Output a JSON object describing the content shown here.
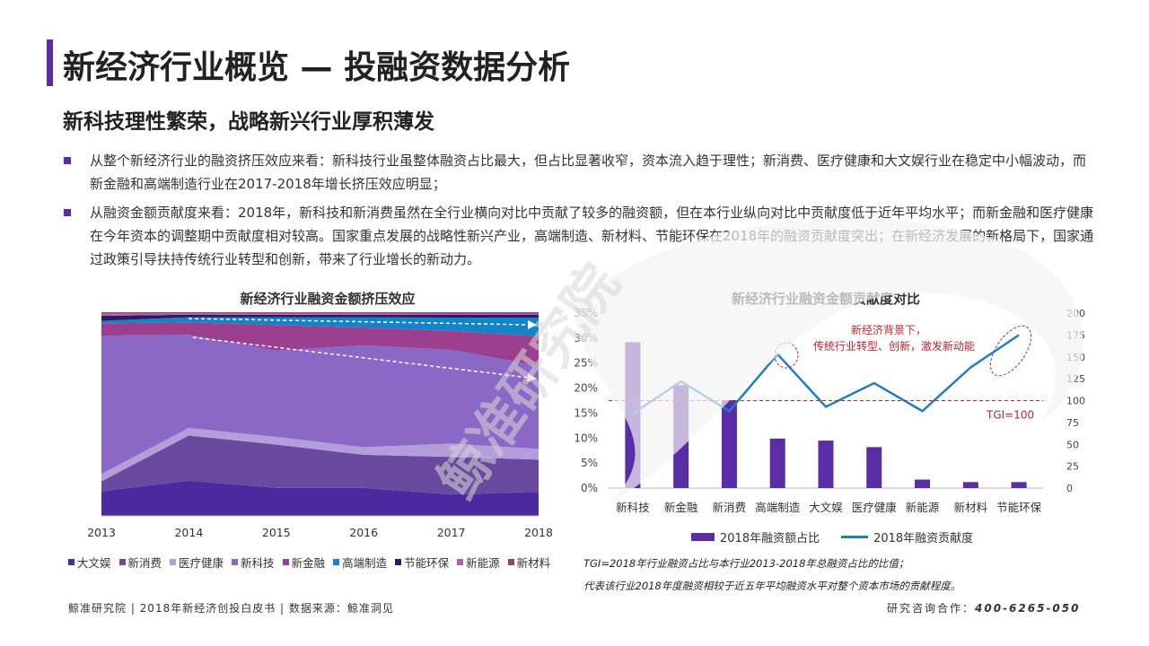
{
  "header": {
    "title": "新经济行业概览 — 投融资数据分析",
    "subtitle": "新科技理性繁荣，战略新兴行业厚积薄发"
  },
  "bullets": [
    "从整个新经济行业的融资挤压效应来看：新科技行业虽整体融资占比最大，但占比显著收窄，资本流入趋于理性；新消费、医疗健康和大文娱行业在稳定中小幅波动，而新金融和高端制造行业在2017-2018年增长挤压效应明显；",
    "从融资金额贡献度来看：2018年，新科技和新消费虽然在全行业横向对比中贡献了较多的融资额，但在本行业纵向对比中贡献度低于近年平均水平；而新金融和医疗健康在今年资本的调整期中贡献度相对较高。国家重点发展的战略性新兴产业，高端制造、新材料、节能环保在2018年的融资贡献度突出；在新经济发展的新格局下，国家通过政策引导扶持传统行业转型和创新，带来了行业增长的新动力。"
  ],
  "watermark": "鲸准研究院",
  "colors": {
    "accent": "#5a2ca6",
    "line": "#1f7fc2",
    "tgi": "#c0262d"
  },
  "chart_data": [
    {
      "type": "area",
      "stacked": true,
      "normalized": true,
      "title": "新经济行业融资金额挤压效应",
      "x": [
        2013,
        2014,
        2015,
        2016,
        2017,
        2018
      ],
      "series": [
        {
          "name": "大文娱",
          "color": "#4b2aa0",
          "values": [
            10,
            14,
            11,
            11,
            8,
            9
          ]
        },
        {
          "name": "新消费",
          "color": "#6a4a9e",
          "values": [
            4,
            18,
            17,
            13,
            14,
            12
          ]
        },
        {
          "name": "医疗健康",
          "color": "#b39ddb",
          "values": [
            3,
            3,
            3,
            3,
            5,
            4
          ]
        },
        {
          "name": "新科技",
          "color": "#8b68c6",
          "values": [
            56,
            37,
            34,
            40,
            35,
            31
          ]
        },
        {
          "name": "新金融",
          "color": "#9c3f8e",
          "values": [
            5,
            5,
            10,
            7,
            7,
            11
          ]
        },
        {
          "name": "高端制造",
          "color": "#1384c8",
          "values": [
            1,
            2,
            3,
            4,
            5,
            7
          ]
        },
        {
          "name": "节能环保",
          "color": "#2a1a5e",
          "values": [
            2,
            1,
            1,
            1,
            1,
            1
          ]
        },
        {
          "name": "新能源",
          "color": "#c05aa8",
          "values": [
            1,
            0.5,
            0.5,
            0.5,
            0.5,
            0.5
          ]
        },
        {
          "name": "新材料",
          "color": "#7b4a7a",
          "values": [
            0.5,
            0.5,
            0.5,
            0.5,
            0.5,
            0.5
          ]
        }
      ],
      "legend_position": "bottom"
    },
    {
      "type": "bar",
      "title": "新经济行业融资金额贡献度对比",
      "categories": [
        "新科技",
        "新金融",
        "新消费",
        "高端制造",
        "大文娱",
        "医疗健康",
        "新能源",
        "新材料",
        "节能环保"
      ],
      "series": [
        {
          "name": "2018年融资额占比",
          "type": "bar",
          "axis": "left",
          "values": [
            29.2,
            20.6,
            17.6,
            9.9,
            9.5,
            8.2,
            1.7,
            1.2,
            1.2
          ]
        },
        {
          "name": "2018年融资贡献度",
          "type": "line",
          "axis": "right",
          "values": [
            85,
            122,
            88,
            153,
            93,
            120,
            88,
            138,
            175
          ]
        }
      ],
      "y_left": {
        "min": 0,
        "max": 35,
        "ticks": [
          "0%",
          "5%",
          "10%",
          "15%",
          "20%",
          "25%",
          "30%",
          "35%"
        ]
      },
      "y_right": {
        "min": 0,
        "max": 200,
        "ticks": [
          "0",
          "25",
          "50",
          "75",
          "100",
          "125",
          "150",
          "175",
          "200"
        ]
      },
      "reference_line": {
        "label": "TGI=100",
        "value": 100,
        "axis": "right"
      },
      "annotation": "新经济背景下，\n传统行业转型、创新，激发新动能",
      "legend_position": "bottom"
    }
  ],
  "notes": [
    "TGI=2018年行业融资占比与本行业2013-2018年总融资占比的比值；",
    "代表该行业2018年度融资相较于近五年平均融资水平对整个资本市场的贡献程度。"
  ],
  "footer": {
    "left": "鲸准研究院 | 2018年新经济创投白皮书 | 数据来源：鲸准洞见",
    "right_label": "研究咨询合作：",
    "phone": "400-6265-050"
  }
}
